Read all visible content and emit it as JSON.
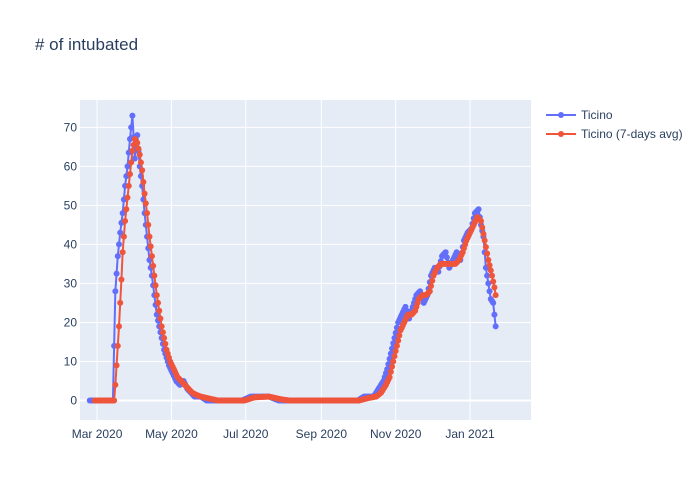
{
  "chart_data": {
    "type": "line",
    "title": "# of intubated",
    "xlabel": "",
    "ylabel": "",
    "x_range": [
      "2020-02-16",
      "2021-02-20"
    ],
    "ylim": [
      -5,
      77
    ],
    "x_ticks": [
      {
        "date": "2020-03-01",
        "label": "Mar 2020"
      },
      {
        "date": "2020-05-01",
        "label": "May 2020"
      },
      {
        "date": "2020-07-01",
        "label": "Jul 2020"
      },
      {
        "date": "2020-09-01",
        "label": "Sep 2020"
      },
      {
        "date": "2020-11-01",
        "label": "Nov 2020"
      },
      {
        "date": "2021-01-01",
        "label": "Jan 2021"
      }
    ],
    "y_ticks": [
      0,
      10,
      20,
      30,
      40,
      50,
      60,
      70
    ],
    "grid": true,
    "legend_position": "top-right",
    "series": [
      {
        "name": "Ticino",
        "color": "#636efa",
        "keypoints": [
          [
            "2020-02-24",
            0
          ],
          [
            "2020-03-08",
            0
          ],
          [
            "2020-03-14",
            0
          ],
          [
            "2020-03-16",
            28
          ],
          [
            "2020-03-18",
            37
          ],
          [
            "2020-03-20",
            43
          ],
          [
            "2020-03-22",
            48
          ],
          [
            "2020-03-24",
            55
          ],
          [
            "2020-03-26",
            60
          ],
          [
            "2020-03-28",
            67
          ],
          [
            "2020-03-30",
            73
          ],
          [
            "2020-04-01",
            62
          ],
          [
            "2020-04-03",
            68
          ],
          [
            "2020-04-05",
            60
          ],
          [
            "2020-04-07",
            55
          ],
          [
            "2020-04-09",
            48
          ],
          [
            "2020-04-11",
            42
          ],
          [
            "2020-04-13",
            36
          ],
          [
            "2020-04-15",
            32
          ],
          [
            "2020-04-17",
            27
          ],
          [
            "2020-04-19",
            22
          ],
          [
            "2020-04-21",
            19
          ],
          [
            "2020-04-23",
            16
          ],
          [
            "2020-04-25",
            13
          ],
          [
            "2020-04-27",
            11
          ],
          [
            "2020-04-29",
            9
          ],
          [
            "2020-05-02",
            7
          ],
          [
            "2020-05-05",
            5
          ],
          [
            "2020-05-08",
            4
          ],
          [
            "2020-05-11",
            5
          ],
          [
            "2020-05-14",
            3
          ],
          [
            "2020-05-17",
            2
          ],
          [
            "2020-05-20",
            1
          ],
          [
            "2020-05-25",
            1
          ],
          [
            "2020-05-30",
            0
          ],
          [
            "2020-06-28",
            0
          ],
          [
            "2020-07-05",
            1
          ],
          [
            "2020-07-20",
            1
          ],
          [
            "2020-07-28",
            0
          ],
          [
            "2020-08-05",
            0
          ],
          [
            "2020-09-15",
            0
          ],
          [
            "2020-10-01",
            0
          ],
          [
            "2020-10-06",
            1
          ],
          [
            "2020-10-14",
            1
          ],
          [
            "2020-10-18",
            3
          ],
          [
            "2020-10-22",
            5
          ],
          [
            "2020-10-25",
            8
          ],
          [
            "2020-10-28",
            12
          ],
          [
            "2020-10-31",
            16
          ],
          [
            "2020-11-03",
            20
          ],
          [
            "2020-11-06",
            22
          ],
          [
            "2020-11-09",
            24
          ],
          [
            "2020-11-12",
            21
          ],
          [
            "2020-11-15",
            24
          ],
          [
            "2020-11-18",
            27
          ],
          [
            "2020-11-21",
            28
          ],
          [
            "2020-11-24",
            25
          ],
          [
            "2020-11-27",
            27
          ],
          [
            "2020-11-30",
            32
          ],
          [
            "2020-12-03",
            34
          ],
          [
            "2020-12-06",
            33
          ],
          [
            "2020-12-09",
            37
          ],
          [
            "2020-12-12",
            38
          ],
          [
            "2020-12-15",
            34
          ],
          [
            "2020-12-18",
            36
          ],
          [
            "2020-12-21",
            38
          ],
          [
            "2020-12-24",
            36
          ],
          [
            "2020-12-27",
            41
          ],
          [
            "2020-12-30",
            43
          ],
          [
            "2021-01-02",
            44
          ],
          [
            "2021-01-05",
            48
          ],
          [
            "2021-01-08",
            49
          ],
          [
            "2021-01-10",
            45
          ],
          [
            "2021-01-12",
            42
          ],
          [
            "2021-01-14",
            34
          ],
          [
            "2021-01-16",
            30
          ],
          [
            "2021-01-18",
            26
          ],
          [
            "2021-01-20",
            25
          ],
          [
            "2021-01-22",
            19
          ]
        ]
      },
      {
        "name": "Ticino (7-days avg)",
        "color": "#ef553b",
        "keypoints": [
          [
            "2020-02-28",
            0
          ],
          [
            "2020-03-12",
            0
          ],
          [
            "2020-03-15",
            0
          ],
          [
            "2020-03-16",
            4
          ],
          [
            "2020-03-17",
            9
          ],
          [
            "2020-03-18",
            14
          ],
          [
            "2020-03-19",
            19
          ],
          [
            "2020-03-20",
            25
          ],
          [
            "2020-03-21",
            31
          ],
          [
            "2020-03-22",
            38
          ],
          [
            "2020-03-23",
            42
          ],
          [
            "2020-03-24",
            46
          ],
          [
            "2020-03-26",
            52
          ],
          [
            "2020-03-28",
            58
          ],
          [
            "2020-03-30",
            64
          ],
          [
            "2020-04-01",
            67
          ],
          [
            "2020-04-03",
            66
          ],
          [
            "2020-04-05",
            63
          ],
          [
            "2020-04-07",
            59
          ],
          [
            "2020-04-09",
            53
          ],
          [
            "2020-04-11",
            48
          ],
          [
            "2020-04-13",
            42
          ],
          [
            "2020-04-15",
            37
          ],
          [
            "2020-04-17",
            32
          ],
          [
            "2020-04-19",
            27
          ],
          [
            "2020-04-21",
            23
          ],
          [
            "2020-04-23",
            19
          ],
          [
            "2020-04-25",
            16
          ],
          [
            "2020-04-27",
            13
          ],
          [
            "2020-04-30",
            10
          ],
          [
            "2020-05-03",
            8
          ],
          [
            "2020-05-06",
            6
          ],
          [
            "2020-05-09",
            5
          ],
          [
            "2020-05-12",
            4
          ],
          [
            "2020-05-15",
            3
          ],
          [
            "2020-05-18",
            2
          ],
          [
            "2020-05-21",
            1.5
          ],
          [
            "2020-05-25",
            1
          ],
          [
            "2020-06-01",
            0.5
          ],
          [
            "2020-06-08",
            0
          ],
          [
            "2020-06-30",
            0
          ],
          [
            "2020-07-08",
            0.8
          ],
          [
            "2020-07-20",
            1
          ],
          [
            "2020-07-30",
            0.3
          ],
          [
            "2020-08-06",
            0
          ],
          [
            "2020-09-20",
            0
          ],
          [
            "2020-10-02",
            0
          ],
          [
            "2020-10-09",
            0.6
          ],
          [
            "2020-10-16",
            1
          ],
          [
            "2020-10-20",
            2
          ],
          [
            "2020-10-24",
            4
          ],
          [
            "2020-10-27",
            6
          ],
          [
            "2020-10-30",
            10
          ],
          [
            "2020-11-02",
            14
          ],
          [
            "2020-11-05",
            18
          ],
          [
            "2020-11-08",
            20
          ],
          [
            "2020-11-11",
            22
          ],
          [
            "2020-11-14",
            22
          ],
          [
            "2020-11-17",
            23
          ],
          [
            "2020-11-20",
            26
          ],
          [
            "2020-11-23",
            27
          ],
          [
            "2020-11-26",
            27
          ],
          [
            "2020-11-29",
            28
          ],
          [
            "2020-12-02",
            32
          ],
          [
            "2020-12-05",
            34
          ],
          [
            "2020-12-08",
            35
          ],
          [
            "2020-12-11",
            35
          ],
          [
            "2020-12-14",
            35
          ],
          [
            "2020-12-17",
            35
          ],
          [
            "2020-12-20",
            35
          ],
          [
            "2020-12-23",
            36
          ],
          [
            "2020-12-26",
            38
          ],
          [
            "2020-12-29",
            41
          ],
          [
            "2021-01-01",
            43
          ],
          [
            "2021-01-04",
            45
          ],
          [
            "2021-01-07",
            47
          ],
          [
            "2021-01-10",
            46
          ],
          [
            "2021-01-13",
            41
          ],
          [
            "2021-01-16",
            36
          ],
          [
            "2021-01-19",
            32
          ],
          [
            "2021-01-21",
            29
          ],
          [
            "2021-01-22",
            27
          ]
        ]
      }
    ]
  }
}
